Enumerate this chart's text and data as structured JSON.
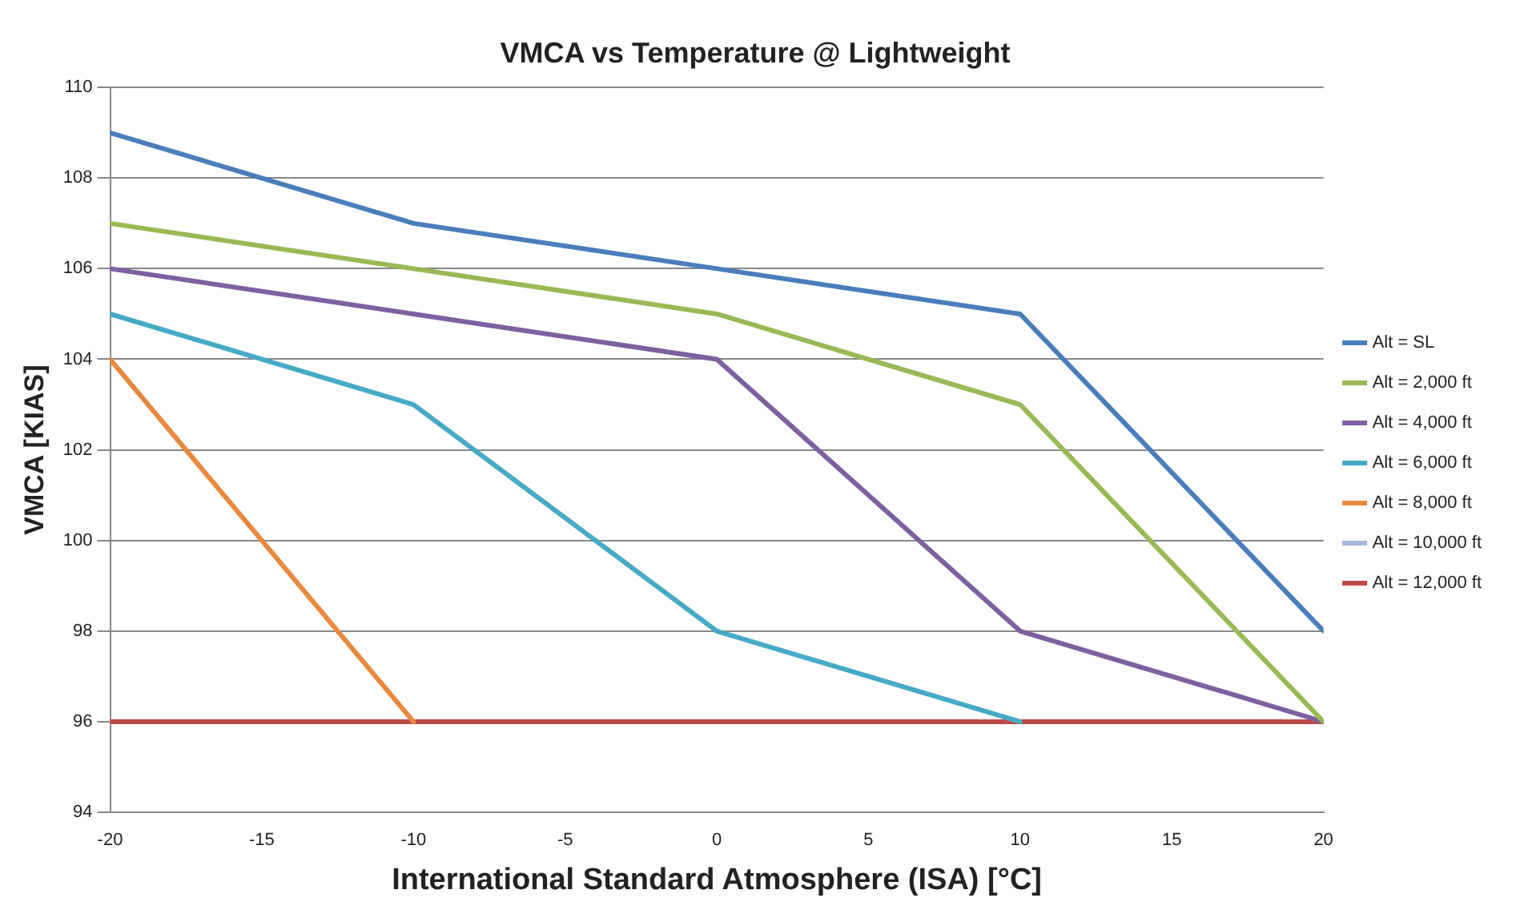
{
  "chart_data": {
    "type": "line",
    "title": "VMCA vs Temperature @ Lightweight",
    "xlabel": "International Standard Atmosphere (ISA) [°C]",
    "ylabel": "VMCA [KIAS]",
    "x": [
      -20,
      -10,
      0,
      10,
      20
    ],
    "series": [
      {
        "name": "Alt = SL",
        "color": "#4a7ebb",
        "values": [
          109,
          107,
          106,
          105,
          98
        ]
      },
      {
        "name": "Alt = 2,000 ft",
        "color": "#98b954",
        "values": [
          107,
          106,
          105,
          103,
          96
        ]
      },
      {
        "name": "Alt = 4,000 ft",
        "color": "#7d60a0",
        "values": [
          106,
          105,
          104,
          98,
          96
        ]
      },
      {
        "name": "Alt = 6,000 ft",
        "color": "#46aac5",
        "values": [
          105,
          103,
          98,
          96,
          null
        ]
      },
      {
        "name": "Alt = 8,000 ft",
        "color": "#e8893e",
        "values": [
          104,
          96,
          null,
          null,
          null
        ]
      },
      {
        "name": "Alt = 10,000 ft",
        "color": "#a5b6dc",
        "values": [
          null,
          null,
          null,
          null,
          null
        ]
      },
      {
        "name": "Alt = 12,000 ft",
        "color": "#be4b48",
        "values": [
          96,
          96,
          96,
          96,
          96
        ]
      }
    ],
    "xlim": [
      -20,
      20
    ],
    "xticks": [
      -20,
      -15,
      -10,
      -5,
      0,
      5,
      10,
      15,
      20
    ],
    "ylim": [
      94,
      110
    ],
    "yticks": [
      94,
      96,
      98,
      100,
      102,
      104,
      106,
      108,
      110
    ],
    "grid": "y",
    "legend": "right",
    "marker": "none",
    "line_style": "solid"
  }
}
